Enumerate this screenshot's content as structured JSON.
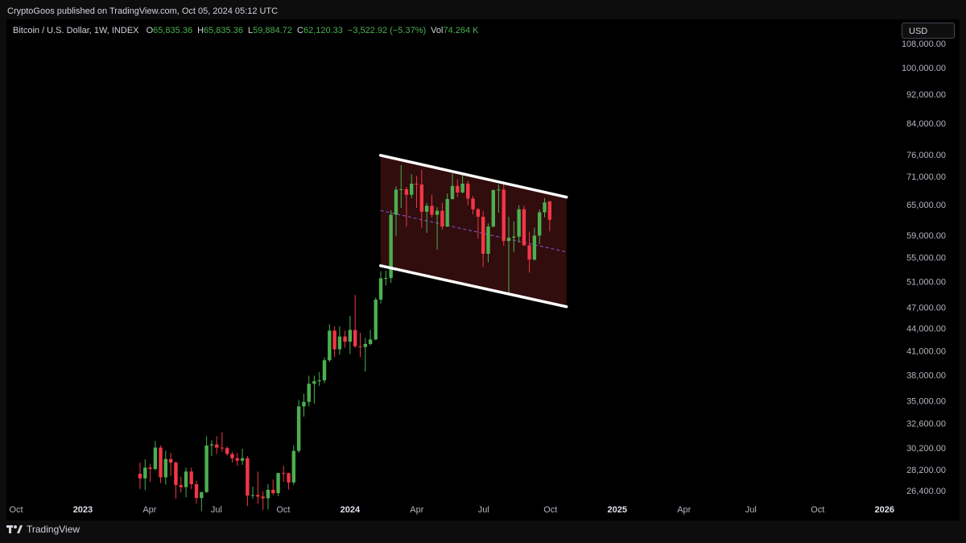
{
  "header": {
    "publisher": "CryptoGoos published on TradingView.com, Oct 05, 2024 05:12 UTC"
  },
  "currency_button": "USD",
  "footer": {
    "brand": "TradingView"
  },
  "chart_data": {
    "type": "candlestick",
    "legend": {
      "symbol": "Bitcoin / U.S. Dollar, 1W, INDEX",
      "items": [
        {
          "label": "O",
          "value": "65,835.36"
        },
        {
          "label": "H",
          "value": "65,835.36"
        },
        {
          "label": "L",
          "value": "59,884.72"
        },
        {
          "label": "C",
          "value": "62,120.33"
        },
        {
          "label": "",
          "value": "−3,522.92 (−5.37%)"
        },
        {
          "label": "Vol",
          "value": "74.264 K"
        }
      ]
    },
    "log_scale": true,
    "grid": false,
    "up_color": "#4caf50",
    "down_color": "#f23645",
    "xlim": [
      2022.72,
      2026.04
    ],
    "ylim": [
      25600,
      116500
    ],
    "xticks": [
      {
        "value": 2022.75,
        "label": "Oct"
      },
      {
        "value": 2023,
        "label": "2023"
      },
      {
        "value": 2023.25,
        "label": "Apr"
      },
      {
        "value": 2023.5,
        "label": "Jul"
      },
      {
        "value": 2023.75,
        "label": "Oct"
      },
      {
        "value": 2024,
        "label": "2024"
      },
      {
        "value": 2024.25,
        "label": "Apr"
      },
      {
        "value": 2024.5,
        "label": "Jul"
      },
      {
        "value": 2024.75,
        "label": "Oct"
      },
      {
        "value": 2025,
        "label": "2025"
      },
      {
        "value": 2025.25,
        "label": "Apr"
      },
      {
        "value": 2025.5,
        "label": "Jul"
      },
      {
        "value": 2025.75,
        "label": "Oct"
      },
      {
        "value": 2026,
        "label": "2026"
      }
    ],
    "yticks": [
      {
        "value": 108000,
        "label": "108,000.00"
      },
      {
        "value": 100000,
        "label": "100,000.00"
      },
      {
        "value": 92000,
        "label": "92,000.00"
      },
      {
        "value": 84000,
        "label": "84,000.00"
      },
      {
        "value": 76000,
        "label": "76,000.00"
      },
      {
        "value": 71000,
        "label": "71,000.00"
      },
      {
        "value": 65000,
        "label": "65,000.00"
      },
      {
        "value": 59000,
        "label": "59,000.00"
      },
      {
        "value": 55000,
        "label": "55,000.00"
      },
      {
        "value": 51000,
        "label": "51,000.00"
      },
      {
        "value": 47000,
        "label": "47,000.00"
      },
      {
        "value": 44000,
        "label": "44,000.00"
      },
      {
        "value": 41000,
        "label": "41,000.00"
      },
      {
        "value": 38000,
        "label": "38,000.00"
      },
      {
        "value": 35000,
        "label": "35,000.00"
      },
      {
        "value": 32600,
        "label": "32,600.00"
      },
      {
        "value": 30200,
        "label": "30,200.00"
      },
      {
        "value": 28200,
        "label": "28,200.00"
      },
      {
        "value": 26400,
        "label": "26,400.00"
      }
    ],
    "x": [
      2023.214,
      2023.233,
      2023.252,
      2023.271,
      2023.291,
      2023.31,
      2023.329,
      2023.348,
      2023.367,
      2023.386,
      2023.406,
      2023.425,
      2023.444,
      2023.463,
      2023.482,
      2023.501,
      2023.521,
      2023.54,
      2023.559,
      2023.578,
      2023.597,
      2023.616,
      2023.636,
      2023.655,
      2023.674,
      2023.693,
      2023.712,
      2023.731,
      2023.751,
      2023.77,
      2023.789,
      2023.808,
      2023.827,
      2023.846,
      2023.866,
      2023.885,
      2023.904,
      2023.923,
      2023.942,
      2023.961,
      2023.981,
      2024.0,
      2024.019,
      2024.038,
      2024.057,
      2024.076,
      2024.096,
      2024.115,
      2024.134,
      2024.153,
      2024.172,
      2024.191,
      2024.211,
      2024.23,
      2024.249,
      2024.268,
      2024.287,
      2024.306,
      2024.326,
      2024.345,
      2024.364,
      2024.383,
      2024.402,
      2024.421,
      2024.441,
      2024.46,
      2024.479,
      2024.498,
      2024.517,
      2024.536,
      2024.556,
      2024.575,
      2024.594,
      2024.613,
      2024.632,
      2024.651,
      2024.671,
      2024.69,
      2024.709,
      2024.728,
      2024.747
    ],
    "open": [
      27900,
      27500,
      28450,
      28330,
      30300,
      27590,
      29230,
      28900,
      26930,
      26750,
      28100,
      27000,
      25850,
      26340,
      30500,
      30600,
      30300,
      30250,
      29700,
      29300,
      29080,
      29300,
      26050,
      26100,
      25970,
      25830,
      26530,
      26250,
      27970,
      27950,
      27150,
      29990,
      34500,
      35000,
      37050,
      37350,
      37450,
      39900,
      43800,
      41300,
      43000,
      42300,
      43900,
      41700,
      41600,
      42000,
      42600,
      48300,
      51650,
      51700,
      63100,
      68300,
      68400,
      67200,
      69600,
      69400,
      63700,
      64900,
      63100,
      63900,
      60800,
      66300,
      69100,
      67700,
      69600,
      66400,
      64200,
      62700,
      55800,
      60800,
      68200,
      68300,
      58100,
      58700,
      58900,
      64200,
      57300,
      54800,
      59100,
      63600,
      65835.36
    ],
    "high": [
      28900,
      29200,
      28800,
      30950,
      30500,
      30000,
      29800,
      29000,
      27650,
      28450,
      28450,
      27300,
      26200,
      31400,
      31000,
      31400,
      31800,
      30400,
      29900,
      29800,
      30200,
      29500,
      26800,
      28100,
      26400,
      27000,
      27400,
      28000,
      28600,
      28000,
      30500,
      35200,
      35900,
      38000,
      38000,
      38450,
      40250,
      44700,
      44400,
      44400,
      43800,
      45900,
      49000,
      43500,
      42800,
      43900,
      48600,
      52800,
      52900,
      64000,
      69000,
      73800,
      68900,
      71700,
      71300,
      72700,
      65500,
      67200,
      64600,
      65500,
      67500,
      71900,
      70600,
      71900,
      70200,
      67000,
      64500,
      63800,
      61400,
      68300,
      69400,
      70000,
      62700,
      61800,
      65000,
      64900,
      59800,
      60600,
      64100,
      66500,
      65835.36
    ],
    "low": [
      26600,
      26500,
      27200,
      28200,
      27100,
      26970,
      27700,
      25800,
      26300,
      25900,
      26600,
      25400,
      24800,
      26250,
      29500,
      29700,
      29900,
      29550,
      28900,
      28600,
      28700,
      25200,
      25800,
      25400,
      24900,
      24930,
      26100,
      26000,
      27200,
      26550,
      26950,
      29800,
      33400,
      34500,
      34800,
      36800,
      37100,
      39700,
      40300,
      40600,
      41500,
      40700,
      41500,
      40300,
      38500,
      41800,
      42500,
      47700,
      50500,
      50900,
      59000,
      64500,
      60800,
      66500,
      64500,
      60600,
      59600,
      62500,
      56500,
      60200,
      60700,
      66200,
      66700,
      67500,
      65000,
      63200,
      58500,
      53500,
      54300,
      60600,
      63500,
      57200,
      49000,
      56100,
      57800,
      57200,
      52600,
      54600,
      57500,
      62600,
      59884.72
    ],
    "close": [
      27500,
      28450,
      28330,
      30300,
      27590,
      29230,
      28900,
      26930,
      26750,
      28100,
      27000,
      25850,
      26340,
      30500,
      30600,
      30300,
      30250,
      29700,
      29300,
      29080,
      29300,
      26050,
      26100,
      25970,
      25830,
      26530,
      26250,
      27970,
      27950,
      27150,
      29990,
      34500,
      35000,
      37050,
      37350,
      37450,
      39900,
      43800,
      41300,
      43000,
      42300,
      43900,
      41700,
      41600,
      42000,
      42600,
      48300,
      51650,
      51700,
      63100,
      68300,
      68400,
      67200,
      69600,
      69400,
      63700,
      64900,
      63100,
      63900,
      60800,
      66300,
      69100,
      67700,
      69600,
      66400,
      64200,
      62700,
      55800,
      60800,
      68200,
      68300,
      58100,
      58700,
      58900,
      64200,
      57300,
      54800,
      59100,
      63600,
      65600,
      62120.33
    ],
    "channel": {
      "x": [
        2024.114,
        2024.81
      ],
      "upper": [
        76100,
        66700
      ],
      "lower": [
        53740,
        47230
      ],
      "line_color": "#ffffff",
      "fill": "#3a0f10",
      "mid_color": "#7b5cd6"
    }
  }
}
